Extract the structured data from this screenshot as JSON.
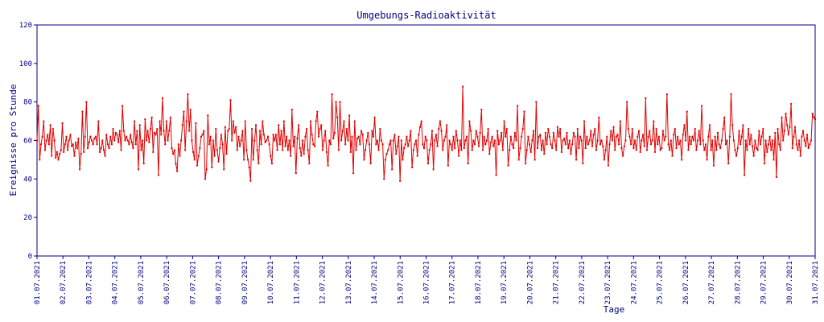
{
  "chart_data": {
    "type": "line",
    "title": "Umgebungs-Radioaktivität",
    "xlabel": "Tage",
    "ylabel": "Ereignisse pro Stunde",
    "ylim": [
      0,
      120
    ],
    "yticks": [
      0,
      20,
      40,
      60,
      80,
      100,
      120
    ],
    "xlim": [
      0,
      30
    ],
    "xtick_labels": [
      "01.07.2021",
      "02.07.2021",
      "03.07.2021",
      "04.07.2021",
      "05.07.2021",
      "06.07.2021",
      "07.07.2021",
      "08.07.2021",
      "09.07.2021",
      "10.07.2021",
      "11.07.2021",
      "12.07.2021",
      "13.07.2021",
      "14.07.2021",
      "15.07.2021",
      "16.07.2021",
      "17.07.2021",
      "18.07.2021",
      "19.07.2021",
      "20.07.2021",
      "21.07.2021",
      "22.07.2021",
      "23.07.2021",
      "24.07.2021",
      "25.07.2021",
      "26.07.2021",
      "27.07.2021",
      "28.07.2021",
      "29.07.2021",
      "30.07.2021",
      "31.07.2021"
    ],
    "grid": false,
    "legend": "none",
    "series": [
      {
        "color": "#e00000",
        "values": [
          60,
          78,
          50,
          58,
          62,
          70,
          55,
          60,
          63,
          58,
          68,
          52,
          66,
          60,
          51,
          54,
          50,
          53,
          55,
          69,
          54,
          58,
          62,
          55,
          60,
          63,
          57,
          58,
          52,
          59,
          56,
          61,
          45,
          53,
          75,
          54,
          62,
          80,
          56,
          59,
          62,
          60,
          58,
          61,
          62,
          58,
          70,
          54,
          56,
          60,
          55,
          52,
          63,
          58,
          56,
          62,
          58,
          66,
          60,
          64,
          63,
          59,
          65,
          55,
          78,
          65,
          60,
          62,
          60,
          58,
          63,
          59,
          56,
          70,
          58,
          65,
          45,
          68,
          55,
          60,
          48,
          71,
          60,
          65,
          59,
          66,
          72,
          54,
          64,
          63,
          66,
          42,
          70,
          63,
          82,
          65,
          58,
          70,
          60,
          65,
          72,
          56,
          53,
          55,
          48,
          44,
          58,
          52,
          60,
          68,
          75,
          55,
          70,
          84,
          65,
          76,
          60,
          54,
          50,
          69,
          47,
          52,
          56,
          62,
          63,
          65,
          40,
          45,
          73,
          58,
          62,
          46,
          60,
          52,
          66,
          55,
          49,
          56,
          63,
          58,
          45,
          67,
          53,
          65,
          66,
          81,
          60,
          70,
          64,
          67,
          55,
          62,
          57,
          60,
          65,
          50,
          70,
          55,
          50,
          46,
          39,
          66,
          50,
          60,
          68,
          55,
          48,
          65,
          58,
          70,
          63,
          59,
          60,
          62,
          58,
          52,
          48,
          63,
          60,
          63,
          55,
          68,
          58,
          65,
          55,
          70,
          57,
          62,
          55,
          60,
          52,
          76,
          57,
          62,
          43,
          61,
          68,
          56,
          52,
          60,
          53,
          62,
          66,
          55,
          48,
          70,
          63,
          58,
          57,
          70,
          75,
          62,
          66,
          68,
          55,
          60,
          65,
          54,
          47,
          60,
          58,
          84,
          61,
          64,
          80,
          72,
          55,
          80,
          60,
          65,
          70,
          58,
          66,
          60,
          73,
          54,
          62,
          43,
          70,
          55,
          61,
          62,
          58,
          65,
          63,
          50,
          55,
          60,
          64,
          58,
          48,
          65,
          62,
          72,
          58,
          60,
          55,
          66,
          60,
          58,
          40,
          50,
          53,
          55,
          58,
          60,
          45,
          60,
          63,
          53,
          57,
          62,
          39,
          60,
          50,
          56,
          58,
          62,
          57,
          60,
          65,
          46,
          55,
          58,
          60,
          52,
          63,
          67,
          70,
          58,
          56,
          62,
          60,
          48,
          55,
          58,
          65,
          45,
          60,
          63,
          57,
          66,
          70,
          65,
          55,
          60,
          62,
          68,
          47,
          60,
          58,
          55,
          62,
          56,
          65,
          60,
          52,
          60,
          55,
          88,
          56,
          60,
          62,
          48,
          70,
          65,
          55,
          60,
          58,
          65,
          62,
          57,
          64,
          76,
          55,
          62,
          58,
          60,
          66,
          53,
          59,
          62,
          57,
          60,
          42,
          65,
          58,
          60,
          64,
          55,
          70,
          62,
          66,
          47,
          55,
          62,
          58,
          56,
          64,
          60,
          78,
          50,
          56,
          62,
          66,
          75,
          48,
          55,
          62,
          58,
          54,
          60,
          65,
          50,
          80,
          56,
          62,
          63,
          55,
          60,
          53,
          64,
          58,
          66,
          62,
          58,
          56,
          64,
          60,
          55,
          67,
          62,
          66,
          54,
          60,
          61,
          58,
          64,
          56,
          60,
          53,
          58,
          64,
          62,
          50,
          66,
          56,
          62,
          60,
          48,
          70,
          56,
          62,
          58,
          60,
          65,
          57,
          63,
          66,
          55,
          60,
          72,
          58,
          60,
          57,
          50,
          55,
          62,
          47,
          58,
          65,
          60,
          67,
          55,
          62,
          63,
          58,
          70,
          56,
          52,
          57,
          60,
          80,
          66,
          62,
          58,
          66,
          56,
          60,
          55,
          62,
          65,
          54,
          60,
          63,
          57,
          82,
          55,
          62,
          65,
          58,
          60,
          70,
          54,
          66,
          58,
          62,
          55,
          56,
          65,
          60,
          62,
          84,
          58,
          55,
          60,
          52,
          63,
          66,
          56,
          62,
          58,
          60,
          50,
          63,
          68,
          60,
          75,
          55,
          62,
          58,
          62,
          60,
          66,
          55,
          60,
          65,
          58,
          78,
          60,
          55,
          58,
          50,
          62,
          68,
          55,
          60,
          47,
          62,
          55,
          64,
          58,
          56,
          60,
          66,
          72,
          58,
          60,
          48,
          62,
          84,
          68,
          60,
          55,
          52,
          56,
          65,
          58,
          62,
          68,
          42,
          60,
          55,
          66,
          58,
          63,
          57,
          52,
          60,
          56,
          55,
          65,
          58,
          62,
          66,
          48,
          60,
          54,
          58,
          62,
          55,
          60,
          50,
          64,
          41,
          66,
          58,
          55,
          72,
          60,
          65,
          74,
          68,
          63,
          67,
          79,
          56,
          62,
          67,
          58,
          55,
          60,
          52,
          62,
          65,
          60,
          57,
          63,
          56,
          58,
          60,
          74,
          72,
          71
        ]
      }
    ]
  }
}
